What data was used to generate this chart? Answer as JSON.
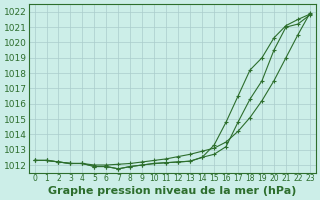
{
  "xlabel": "Graphe pression niveau de la mer (hPa)",
  "bg_color": "#cceee8",
  "grid_color": "#aacccc",
  "line_color": "#2d6e2d",
  "x_ticks": [
    0,
    1,
    2,
    3,
    4,
    5,
    6,
    7,
    8,
    9,
    10,
    11,
    12,
    13,
    14,
    15,
    16,
    17,
    18,
    19,
    20,
    21,
    22,
    23
  ],
  "ylim": [
    1011.5,
    1022.5
  ],
  "xlim": [
    -0.5,
    23.5
  ],
  "yticks": [
    1012,
    1013,
    1014,
    1015,
    1016,
    1017,
    1018,
    1019,
    1020,
    1021,
    1022
  ],
  "series1": [
    1012.3,
    1012.3,
    1012.2,
    1012.1,
    1012.1,
    1011.9,
    1011.9,
    1011.75,
    1011.9,
    1012.0,
    1012.1,
    1012.15,
    1012.2,
    1012.25,
    1012.5,
    1012.7,
    1013.2,
    1014.8,
    1016.3,
    1017.5,
    1019.5,
    1021.0,
    1021.2,
    1021.8
  ],
  "series2": [
    1012.3,
    1012.3,
    1012.2,
    1012.1,
    1012.1,
    1011.9,
    1011.9,
    1011.75,
    1011.9,
    1012.0,
    1012.1,
    1012.15,
    1012.2,
    1012.25,
    1012.5,
    1013.3,
    1014.8,
    1016.5,
    1018.2,
    1019.0,
    1020.3,
    1021.1,
    1021.5,
    1021.85
  ],
  "series3": [
    1012.3,
    1012.3,
    1012.2,
    1012.1,
    1012.1,
    1012.0,
    1012.0,
    1012.05,
    1012.1,
    1012.2,
    1012.3,
    1012.4,
    1012.55,
    1012.7,
    1012.9,
    1013.1,
    1013.5,
    1014.2,
    1015.1,
    1016.2,
    1017.5,
    1019.0,
    1020.5,
    1021.9
  ],
  "xlabel_fontsize": 8,
  "ytick_fontsize": 6.5,
  "xtick_fontsize": 5.5
}
